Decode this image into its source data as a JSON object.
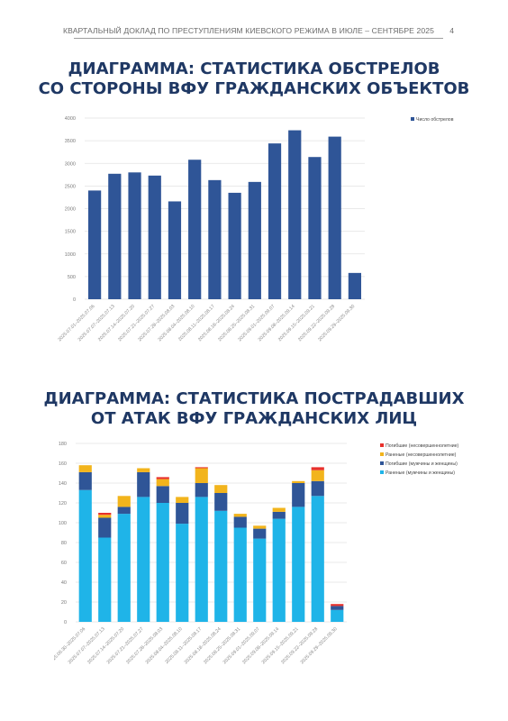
{
  "header": {
    "title": "КВАРТАЛЬНЫЙ ДОКЛАД ПО ПРЕСТУПЛЕНИЯМ КИЕВСКОГО РЕЖИМА В ИЮЛЕ – СЕНТЯБРЕ 2025",
    "page_number": "4"
  },
  "section1": {
    "title_line1": "ДИАГРАММА: СТАТИСТИКА ОБСТРЕЛОВ",
    "title_line2": "СО СТОРОНЫ ВФУ ГРАЖДАНСКИХ ОБЪЕКТОВ"
  },
  "section2": {
    "title_line1": "ДИАГРАММА: СТАТИСТИКА ПОСТРАДАВШИХ",
    "title_line2": "ОТ АТАК ВФУ ГРАЖДАНСКИХ ЛИЦ"
  },
  "chart_data": [
    {
      "type": "bar",
      "categories": [
        "2025.07.01–2025.07.06",
        "2025.07.07–2025.07.13",
        "2025.07.14–2025.07.20",
        "2025.07.21–2025.07.27",
        "2025.07.28–2025.08.03",
        "2025.08.04–2025.08.10",
        "2025.08.11–2025.08.17",
        "2025.08.18–2025.08.24",
        "2025.08.25–2025.08.31",
        "2025.09.01–2025.09.07",
        "2025.09.08–2025.09.14",
        "2025.09.15–2025.09.21",
        "2025.09.22–2025.09.28",
        "2025.09.29–2025.09.30"
      ],
      "series": [
        {
          "name": "Число обстрелов",
          "color": "#2f5597",
          "values": [
            2400,
            2770,
            2800,
            2730,
            2160,
            3080,
            2630,
            2350,
            2590,
            3440,
            3730,
            3140,
            3590,
            580
          ]
        }
      ],
      "ylim": [
        0,
        4000
      ],
      "yticks": [
        0,
        500,
        1000,
        1500,
        2000,
        2500,
        3000,
        3500,
        4000
      ],
      "grid": true,
      "legend": "top-right"
    },
    {
      "type": "bar",
      "stacked": true,
      "categories": [
        "2025.06.30–2025.07.06",
        "2025.07.07–2025.07.13",
        "2025.07.14–2025.07.20",
        "2025.07.21–2025.07.27",
        "2025.07.28–2025.08.03",
        "2025.08.04–2025.08.10",
        "2025.08.11–2025.08.17",
        "2025.08.18–2025.08.24",
        "2025.08.25–2025.08.31",
        "2025.09.01–2025.09.07",
        "2025.09.08–2025.09.14",
        "2025.09.15–2025.09.21",
        "2025.09.22–2025.09.28",
        "2025.09.29–2025.09.30"
      ],
      "series": [
        {
          "name": "Раненые (мужчины и женщины)",
          "color": "#1fb4e8",
          "values": [
            133,
            85,
            109,
            126,
            120,
            99,
            126,
            112,
            95,
            84,
            104,
            116,
            127,
            12
          ]
        },
        {
          "name": "Погибшие (мужчины и женщины)",
          "color": "#2f5597",
          "values": [
            18,
            20,
            7,
            25,
            17,
            21,
            14,
            18,
            11,
            10,
            7,
            24,
            15,
            4
          ]
        },
        {
          "name": "Раненые (несовершеннолетние)",
          "color": "#f2b41c",
          "values": [
            7,
            3,
            11,
            4,
            7,
            6,
            15,
            8,
            3,
            3,
            4,
            2,
            11,
            0
          ]
        },
        {
          "name": "Погибшие (несовершеннолетние)",
          "color": "#e8302b",
          "values": [
            0,
            2,
            0,
            0,
            2,
            0,
            1,
            0,
            0,
            0,
            0,
            0,
            3,
            2
          ]
        }
      ],
      "ylim": [
        0,
        180
      ],
      "yticks": [
        0,
        20,
        40,
        60,
        80,
        100,
        120,
        140,
        160,
        180
      ],
      "grid": true,
      "legend": "top-right"
    }
  ]
}
